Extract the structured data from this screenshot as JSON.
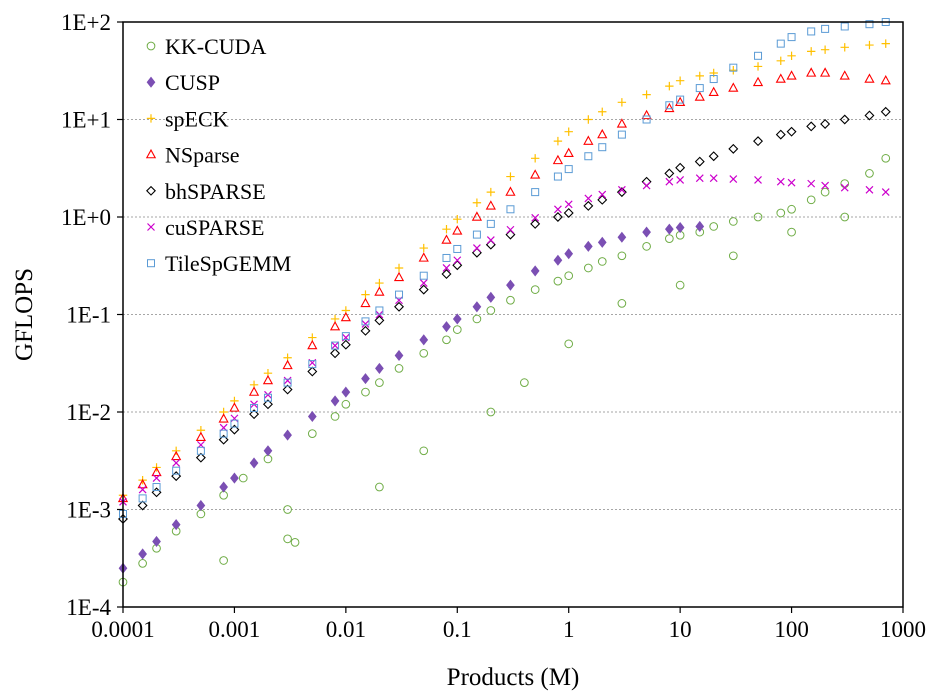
{
  "chart_data": {
    "type": "scatter",
    "title": "",
    "xlabel": "Products (M)",
    "ylabel": "GFLOPS",
    "x_scale": "log",
    "y_scale": "log",
    "xlim": [
      0.0001,
      1000
    ],
    "ylim": [
      0.0001,
      100
    ],
    "x_ticks": [
      "0.0001",
      "0.001",
      "0.01",
      "0.1",
      "1",
      "10",
      "100",
      "1000"
    ],
    "y_ticks": [
      "1E-4",
      "1E-3",
      "1E-2",
      "1E-1",
      "1E+0",
      "1E+1",
      "1E+2"
    ],
    "grid": "horizontal dotted",
    "legend_position": "top-left",
    "series": [
      {
        "name": "KK-CUDA",
        "marker": "circle",
        "color": "#70ad47",
        "x": [
          0.0001,
          0.00015,
          0.0002,
          0.0003,
          0.0005,
          0.0008,
          0.0012,
          0.002,
          0.003,
          0.0035,
          0.005,
          0.008,
          0.01,
          0.015,
          0.02,
          0.03,
          0.05,
          0.08,
          0.1,
          0.15,
          0.2,
          0.3,
          0.5,
          0.8,
          1,
          1.5,
          2,
          3,
          5,
          8,
          10,
          15,
          20,
          30,
          50,
          80,
          100,
          150,
          200,
          300,
          500,
          700,
          0.0008,
          0.003,
          0.02,
          0.05,
          0.2,
          0.4,
          1,
          3,
          10,
          30,
          100,
          300
        ],
        "y": [
          0.00018,
          0.00028,
          0.0004,
          0.0006,
          0.0009,
          0.0014,
          0.0021,
          0.0033,
          0.0005,
          0.00046,
          0.006,
          0.009,
          0.012,
          0.016,
          0.02,
          0.028,
          0.04,
          0.055,
          0.07,
          0.09,
          0.11,
          0.14,
          0.18,
          0.22,
          0.25,
          0.3,
          0.35,
          0.4,
          0.5,
          0.6,
          0.65,
          0.7,
          0.8,
          0.9,
          1.0,
          1.1,
          1.2,
          1.5,
          1.8,
          2.2,
          2.8,
          4.0,
          0.0003,
          0.001,
          0.0017,
          0.004,
          0.01,
          0.02,
          0.05,
          0.13,
          0.2,
          0.4,
          0.7,
          1.0
        ]
      },
      {
        "name": "CUSP",
        "marker": "diamond-filled",
        "color": "#7b4fb3",
        "x": [
          0.0001,
          0.00015,
          0.0002,
          0.0003,
          0.0005,
          0.0008,
          0.001,
          0.0015,
          0.002,
          0.003,
          0.005,
          0.008,
          0.01,
          0.015,
          0.02,
          0.03,
          0.05,
          0.08,
          0.1,
          0.15,
          0.2,
          0.3,
          0.5,
          0.8,
          1,
          1.5,
          2,
          3,
          5,
          8,
          10,
          15
        ],
        "y": [
          0.00025,
          0.00035,
          0.00047,
          0.0007,
          0.0011,
          0.0017,
          0.0021,
          0.003,
          0.004,
          0.0058,
          0.009,
          0.013,
          0.016,
          0.022,
          0.028,
          0.038,
          0.055,
          0.075,
          0.09,
          0.12,
          0.15,
          0.2,
          0.28,
          0.36,
          0.42,
          0.5,
          0.55,
          0.62,
          0.7,
          0.75,
          0.78,
          0.8
        ]
      },
      {
        "name": "spECK",
        "marker": "plus",
        "color": "#ffc000",
        "x": [
          0.0001,
          0.00015,
          0.0002,
          0.0003,
          0.0005,
          0.0008,
          0.001,
          0.0015,
          0.002,
          0.003,
          0.005,
          0.008,
          0.01,
          0.015,
          0.02,
          0.03,
          0.05,
          0.08,
          0.1,
          0.15,
          0.2,
          0.3,
          0.5,
          0.8,
          1,
          1.5,
          2,
          3,
          5,
          8,
          10,
          15,
          20,
          30,
          50,
          80,
          100,
          150,
          200,
          300,
          500,
          700
        ],
        "y": [
          0.0014,
          0.002,
          0.0027,
          0.004,
          0.0065,
          0.01,
          0.013,
          0.019,
          0.025,
          0.036,
          0.058,
          0.09,
          0.11,
          0.16,
          0.21,
          0.3,
          0.48,
          0.75,
          0.95,
          1.4,
          1.8,
          2.6,
          4.0,
          6.0,
          7.5,
          10,
          12,
          15,
          18,
          22,
          25,
          28,
          30,
          32,
          35,
          40,
          45,
          50,
          52,
          55,
          58,
          60
        ]
      },
      {
        "name": "NSparse",
        "marker": "triangle",
        "color": "#ff0000",
        "x": [
          0.0001,
          0.00015,
          0.0002,
          0.0003,
          0.0005,
          0.0008,
          0.001,
          0.0015,
          0.002,
          0.003,
          0.005,
          0.008,
          0.01,
          0.015,
          0.02,
          0.03,
          0.05,
          0.08,
          0.1,
          0.15,
          0.2,
          0.3,
          0.5,
          0.8,
          1,
          1.5,
          2,
          3,
          5,
          8,
          10,
          15,
          20,
          30,
          50,
          80,
          100,
          150,
          200,
          300,
          500,
          700
        ],
        "y": [
          0.0013,
          0.0018,
          0.0024,
          0.0035,
          0.0055,
          0.0085,
          0.011,
          0.016,
          0.021,
          0.03,
          0.048,
          0.075,
          0.093,
          0.13,
          0.17,
          0.24,
          0.38,
          0.58,
          0.72,
          1.0,
          1.3,
          1.8,
          2.7,
          3.8,
          4.5,
          6,
          7,
          9,
          11,
          13,
          15,
          17,
          19,
          21,
          24,
          26,
          28,
          30,
          30,
          28,
          26,
          25
        ]
      },
      {
        "name": "bhSPARSE",
        "marker": "diamond",
        "color": "#000000",
        "x": [
          0.0001,
          0.00015,
          0.0002,
          0.0003,
          0.0005,
          0.0008,
          0.001,
          0.0015,
          0.002,
          0.003,
          0.005,
          0.008,
          0.01,
          0.015,
          0.02,
          0.03,
          0.05,
          0.08,
          0.1,
          0.15,
          0.2,
          0.3,
          0.5,
          0.8,
          1,
          1.5,
          2,
          3,
          5,
          8,
          10,
          15,
          20,
          30,
          50,
          80,
          100,
          150,
          200,
          300,
          500,
          700
        ],
        "y": [
          0.0008,
          0.0011,
          0.0015,
          0.0022,
          0.0034,
          0.0052,
          0.0066,
          0.0095,
          0.012,
          0.017,
          0.026,
          0.04,
          0.049,
          0.068,
          0.087,
          0.12,
          0.18,
          0.26,
          0.32,
          0.43,
          0.52,
          0.66,
          0.85,
          1.0,
          1.1,
          1.3,
          1.5,
          1.8,
          2.3,
          2.8,
          3.2,
          3.7,
          4.2,
          5.0,
          6.0,
          7.0,
          7.5,
          8.5,
          9.0,
          10.0,
          11.0,
          12.0
        ]
      },
      {
        "name": "cuSPARSE",
        "marker": "cross",
        "color": "#cc00cc",
        "x": [
          0.0001,
          0.00015,
          0.0002,
          0.0003,
          0.0005,
          0.0008,
          0.001,
          0.0015,
          0.002,
          0.003,
          0.005,
          0.008,
          0.01,
          0.015,
          0.02,
          0.03,
          0.05,
          0.08,
          0.1,
          0.15,
          0.2,
          0.3,
          0.5,
          0.8,
          1,
          1.5,
          2,
          3,
          5,
          8,
          10,
          15,
          20,
          30,
          50,
          80,
          100,
          150,
          200,
          300,
          500,
          700
        ],
        "y": [
          0.0012,
          0.0016,
          0.0021,
          0.003,
          0.0046,
          0.0069,
          0.0086,
          0.012,
          0.015,
          0.021,
          0.032,
          0.048,
          0.058,
          0.08,
          0.1,
          0.14,
          0.21,
          0.3,
          0.36,
          0.48,
          0.58,
          0.74,
          0.98,
          1.2,
          1.35,
          1.55,
          1.7,
          1.9,
          2.1,
          2.3,
          2.4,
          2.5,
          2.5,
          2.45,
          2.4,
          2.3,
          2.25,
          2.2,
          2.1,
          2.0,
          1.9,
          1.8
        ]
      },
      {
        "name": "TileSpGEMM",
        "marker": "square",
        "color": "#5b9bd5",
        "x": [
          0.0001,
          0.00015,
          0.0002,
          0.0003,
          0.0005,
          0.0008,
          0.001,
          0.0015,
          0.002,
          0.003,
          0.005,
          0.008,
          0.01,
          0.015,
          0.02,
          0.03,
          0.05,
          0.08,
          0.1,
          0.15,
          0.2,
          0.3,
          0.5,
          0.8,
          1,
          1.5,
          2,
          3,
          5,
          8,
          10,
          15,
          20,
          30,
          50,
          80,
          100,
          150,
          200,
          300,
          500,
          700
        ],
        "y": [
          0.0009,
          0.0013,
          0.0017,
          0.0025,
          0.004,
          0.006,
          0.0076,
          0.011,
          0.014,
          0.02,
          0.031,
          0.048,
          0.06,
          0.085,
          0.11,
          0.16,
          0.25,
          0.38,
          0.47,
          0.66,
          0.85,
          1.2,
          1.8,
          2.6,
          3.1,
          4.2,
          5.2,
          7.0,
          10,
          14,
          16,
          21,
          26,
          34,
          45,
          60,
          70,
          80,
          85,
          90,
          95,
          100
        ]
      }
    ]
  }
}
